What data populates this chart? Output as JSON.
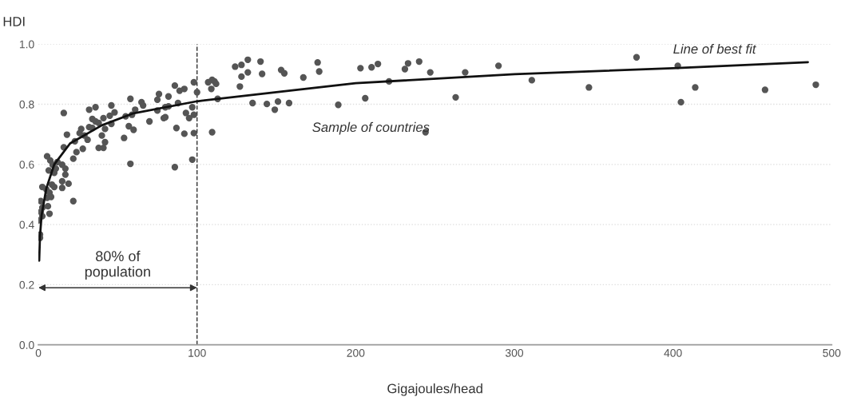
{
  "chart_data": {
    "type": "scatter",
    "xlabel": "Gigajoules/head",
    "ylabel": "HDI",
    "xlim": [
      0,
      500
    ],
    "ylim": [
      0,
      1.0
    ],
    "xticks": [
      0,
      100,
      200,
      300,
      400,
      500
    ],
    "yticks": [
      {
        "value": 0,
        "label": "0.0"
      },
      {
        "value": 0.2,
        "label": "0.2"
      },
      {
        "value": 0.4,
        "label": "0.4"
      },
      {
        "value": 0.6,
        "label": "0.6"
      },
      {
        "value": 0.8,
        "label": "0.8"
      },
      {
        "value": 1.0,
        "label": "1.0"
      }
    ],
    "grid": "y",
    "marker": "circle",
    "series": [
      {
        "color": "#555555",
        "x": [
          311,
          347,
          377,
          403,
          405,
          414,
          458,
          490,
          124,
          128,
          132,
          140,
          128,
          132,
          127,
          141,
          153,
          155,
          167,
          176,
          177,
          135,
          144,
          149,
          151,
          158,
          189,
          203,
          206,
          210,
          214,
          221,
          231,
          233,
          240,
          244,
          247,
          263,
          269,
          290,
          109.5,
          111,
          112,
          107,
          109,
          113,
          109.5,
          98,
          100,
          97,
          98,
          95,
          93,
          98,
          92,
          97,
          86,
          89,
          92,
          87,
          86,
          82,
          88,
          76,
          75,
          82,
          80,
          79,
          80,
          75,
          70,
          65,
          66,
          61,
          58,
          54,
          58,
          60,
          57,
          55,
          59,
          46,
          48,
          45,
          46,
          41,
          42,
          42,
          38,
          41,
          40,
          36,
          32,
          34,
          36,
          38,
          32,
          34,
          27,
          26,
          29,
          31,
          16,
          18,
          16,
          23,
          28,
          22,
          24,
          22,
          19,
          15,
          15,
          17,
          15,
          17,
          12,
          5.5,
          7.5,
          9,
          11,
          6.5,
          10,
          2.5,
          5,
          8.5,
          7,
          10,
          8,
          5.5,
          1.5,
          2.5,
          6,
          7,
          1.5,
          0,
          2.5,
          1,
          1
        ],
        "values": [
          0.88,
          0.856,
          0.956,
          0.928,
          0.807,
          0.856,
          0.848,
          0.865,
          0.925,
          0.931,
          0.948,
          0.942,
          0.892,
          0.906,
          0.859,
          0.901,
          0.914,
          0.903,
          0.889,
          0.939,
          0.909,
          0.804,
          0.801,
          0.782,
          0.809,
          0.804,
          0.798,
          0.92,
          0.82,
          0.923,
          0.934,
          0.876,
          0.917,
          0.936,
          0.942,
          0.707,
          0.906,
          0.823,
          0.906,
          0.928,
          0.881,
          0.876,
          0.868,
          0.873,
          0.851,
          0.818,
          0.707,
          0.873,
          0.84,
          0.79,
          0.765,
          0.754,
          0.771,
          0.704,
          0.702,
          0.616,
          0.862,
          0.845,
          0.851,
          0.721,
          0.591,
          0.826,
          0.804,
          0.834,
          0.815,
          0.793,
          0.79,
          0.754,
          0.757,
          0.779,
          0.743,
          0.807,
          0.796,
          0.782,
          0.818,
          0.688,
          0.602,
          0.715,
          0.727,
          0.76,
          0.765,
          0.796,
          0.773,
          0.762,
          0.735,
          0.754,
          0.718,
          0.674,
          0.655,
          0.655,
          0.696,
          0.79,
          0.782,
          0.751,
          0.743,
          0.738,
          0.724,
          0.721,
          0.718,
          0.704,
          0.696,
          0.682,
          0.771,
          0.699,
          0.657,
          0.677,
          0.652,
          0.619,
          0.641,
          0.478,
          0.536,
          0.544,
          0.522,
          0.566,
          0.599,
          0.586,
          0.608,
          0.627,
          0.613,
          0.599,
          0.586,
          0.58,
          0.572,
          0.525,
          0.517,
          0.533,
          0.506,
          0.525,
          0.492,
          0.489,
          0.478,
          0.456,
          0.461,
          0.436,
          0.442,
          0.414,
          0.428,
          0.367,
          0.356
        ]
      },
      {
        "type": "line",
        "color": "#111111",
        "marker": "none",
        "x": [
          0.5,
          1,
          2,
          5,
          10,
          20,
          40,
          60,
          100,
          150,
          200,
          300,
          400,
          485
        ],
        "values": [
          0.28,
          0.36,
          0.43,
          0.52,
          0.6,
          0.67,
          0.73,
          0.77,
          0.81,
          0.84,
          0.87,
          0.9,
          0.92,
          0.94
        ]
      }
    ],
    "ref_lines": [
      {
        "axis": "x",
        "value": 100,
        "color": "#333333",
        "line_style": "dashed"
      }
    ],
    "annotations": [
      "Line of best fit",
      "Sample of countries",
      "80% of\npopulation"
    ],
    "legend": false
  }
}
